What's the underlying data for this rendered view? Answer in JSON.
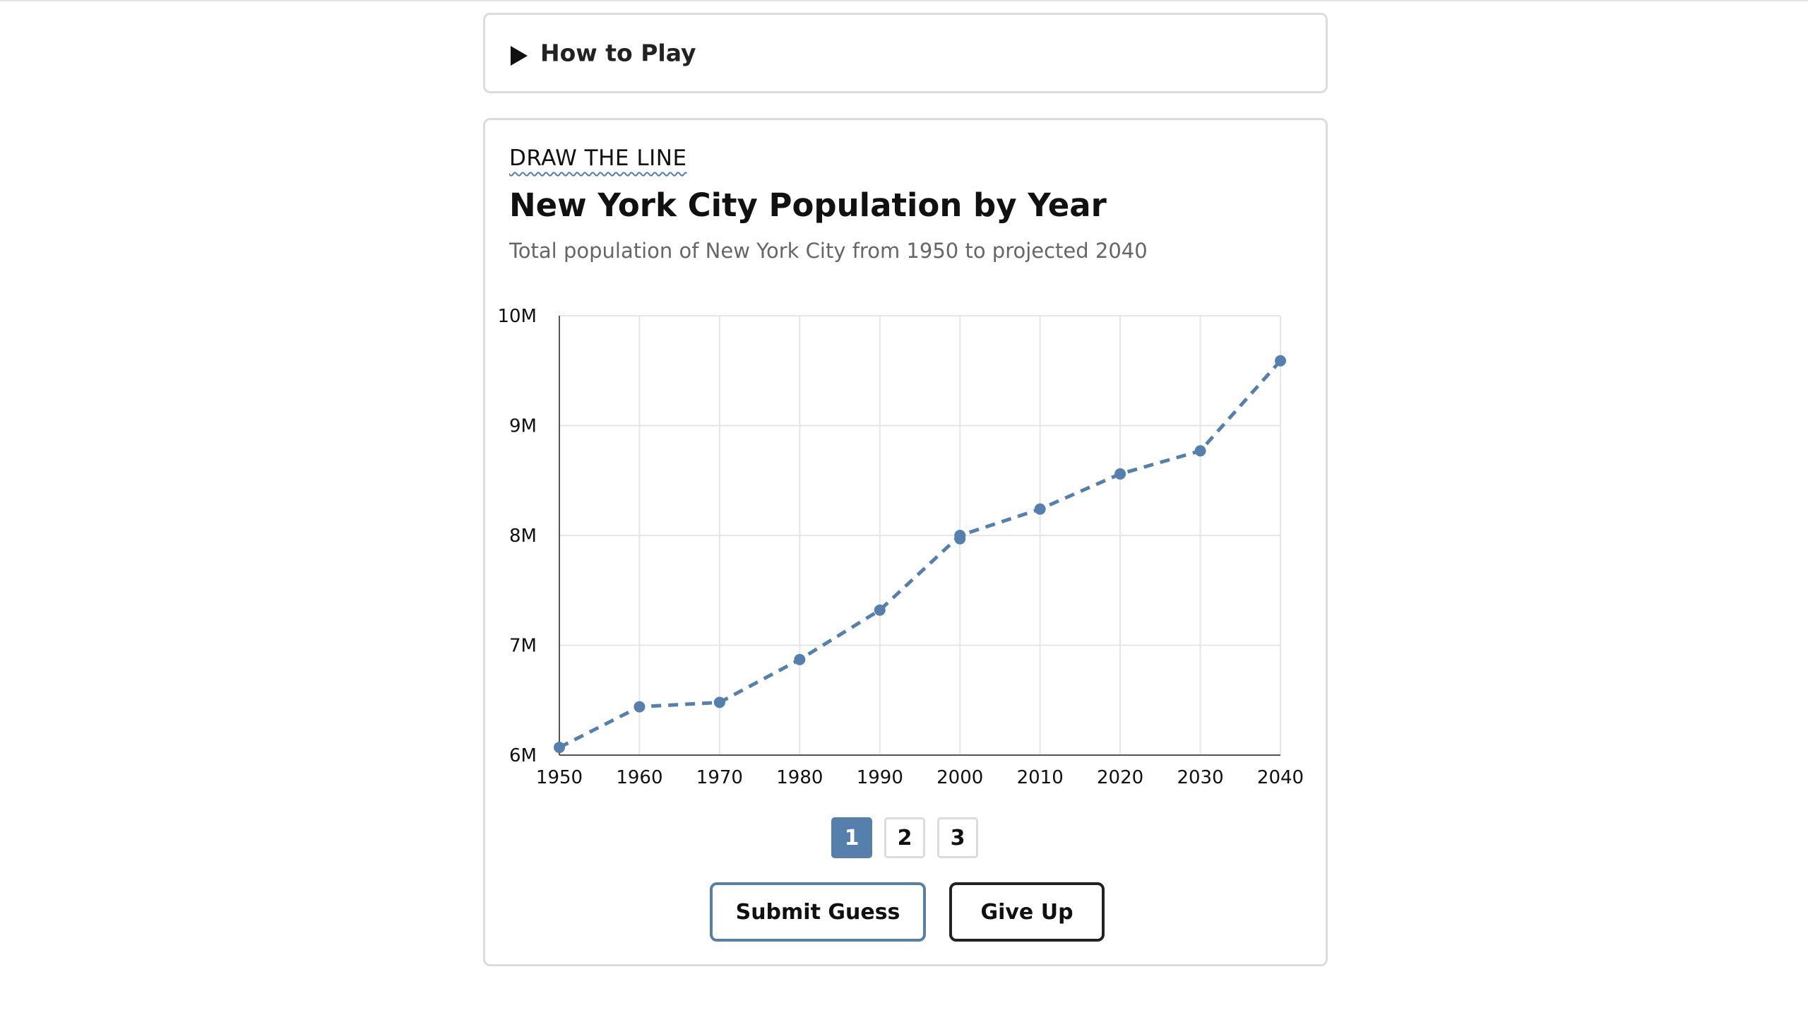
{
  "how_to_play": {
    "label": "How to Play"
  },
  "game": {
    "eyebrow": "DRAW THE LINE",
    "title": "New York City Population by Year",
    "subtitle": "Total population of New York City from 1950 to projected 2040",
    "pages": [
      "1",
      "2",
      "3"
    ],
    "active_page": "1",
    "submit_label": "Submit Guess",
    "give_up_label": "Give Up"
  },
  "colors": {
    "accent": "#5580ad",
    "line": "#5580ad",
    "grid": "#e6e6e6",
    "axis": "#555555"
  },
  "chart_data": {
    "type": "line",
    "line_style": "dashed",
    "grid": true,
    "x": [
      1950,
      1960,
      1970,
      1980,
      1990,
      2000,
      2010,
      2020,
      2030,
      2040
    ],
    "series": [
      {
        "values": [
          6.07,
          6.44,
          6.48,
          6.87,
          7.32,
          8.0,
          8.24,
          8.56,
          8.77,
          9.59
        ]
      }
    ],
    "extra_points": [
      {
        "x": 2000,
        "y": 7.97
      }
    ],
    "xlim": [
      1950,
      2040
    ],
    "ylim": [
      6,
      10
    ],
    "yticks": [
      6,
      7,
      8,
      9,
      10
    ],
    "ytick_labels": [
      "6M",
      "7M",
      "8M",
      "9M",
      "10M"
    ],
    "xtick_labels": [
      "1950",
      "1960",
      "1970",
      "1980",
      "1990",
      "2000",
      "2010",
      "2020",
      "2030",
      "2040"
    ]
  }
}
